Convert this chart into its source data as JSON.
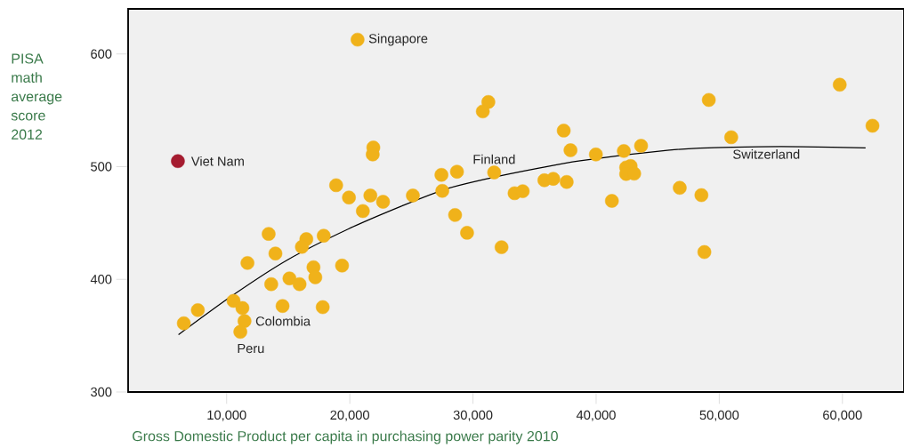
{
  "chart_data": {
    "type": "scatter",
    "xlabel": "Gross Domestic Product per capita in purchasing power parity 2010",
    "ylabel": "PISA math average score 2012",
    "xlim": [
      2000,
      65000
    ],
    "ylim": [
      300,
      640
    ],
    "xticks": [
      {
        "value": 10000,
        "label": "10,000"
      },
      {
        "value": 20000,
        "label": "20,000"
      },
      {
        "value": 30000,
        "label": "30,000"
      },
      {
        "value": 40000,
        "label": "40,000"
      },
      {
        "value": 50000,
        "label": "50,000"
      },
      {
        "value": 60000,
        "label": "60,000"
      }
    ],
    "yticks": [
      300,
      400,
      500,
      600
    ],
    "series": [
      {
        "marker": "circle",
        "x": [
          20630,
          6040,
          21910,
          21860,
          18890,
          19930,
          21670,
          21060,
          13410,
          16470,
          17880,
          16110,
          13960,
          11690,
          19370,
          17050,
          17200,
          15100,
          15920,
          13620,
          10560,
          11280,
          14540,
          17800,
          7660,
          6520,
          11450,
          11110,
          31250,
          30800,
          37370,
          37920,
          39980,
          42250,
          43650,
          31720,
          28700,
          27440,
          27510,
          25120,
          22700,
          28550,
          29520,
          32320,
          33380,
          34040,
          35800,
          36520,
          37610,
          41280,
          42440,
          42800,
          42440,
          43090,
          59780,
          49150,
          62440,
          50970,
          46790,
          48550,
          48790
        ],
        "values": [
          612.7,
          504.9,
          517,
          510.8,
          483.5,
          472.6,
          474.4,
          460.6,
          440.3,
          435.7,
          438.7,
          428.8,
          422.9,
          414.5,
          412.2,
          410.7,
          401.8,
          400.8,
          395.7,
          395.7,
          380.9,
          374.5,
          376.3,
          375.3,
          372.7,
          361,
          363,
          353.4,
          557.4,
          549,
          532,
          514.6,
          510.8,
          513.9,
          518.5,
          494.8,
          495.5,
          492.7,
          478.5,
          474.4,
          468.8,
          457.1,
          441.3,
          428.5,
          476.4,
          478.2,
          487.9,
          489.2,
          486.4,
          469.6,
          499.3,
          500.6,
          493.5,
          493.8,
          572.7,
          559.2,
          536.3,
          526.1,
          481.2,
          474.7,
          424.2
        ],
        "colors": [
          "#f0b21a",
          "#a51c30",
          "#f0b21a",
          "#f0b21a",
          "#f0b21a",
          "#f0b21a",
          "#f0b21a",
          "#f0b21a",
          "#f0b21a",
          "#f0b21a",
          "#f0b21a",
          "#f0b21a",
          "#f0b21a",
          "#f0b21a",
          "#f0b21a",
          "#f0b21a",
          "#f0b21a",
          "#f0b21a",
          "#f0b21a",
          "#f0b21a",
          "#f0b21a",
          "#f0b21a",
          "#f0b21a",
          "#f0b21a",
          "#f0b21a",
          "#f0b21a",
          "#f0b21a",
          "#f0b21a",
          "#f0b21a",
          "#f0b21a",
          "#f0b21a",
          "#f0b21a",
          "#f0b21a",
          "#f0b21a",
          "#f0b21a",
          "#f0b21a",
          "#f0b21a",
          "#f0b21a",
          "#f0b21a",
          "#f0b21a",
          "#f0b21a",
          "#f0b21a",
          "#f0b21a",
          "#f0b21a",
          "#f0b21a",
          "#f0b21a",
          "#f0b21a",
          "#f0b21a",
          "#f0b21a",
          "#f0b21a",
          "#f0b21a",
          "#f0b21a",
          "#f0b21a",
          "#f0b21a",
          "#f0b21a",
          "#f0b21a",
          "#f0b21a",
          "#f0b21a",
          "#f0b21a",
          "#f0b21a",
          "#f0b21a"
        ]
      },
      {
        "type": "line",
        "marker": "none",
        "color": "#000000",
        "x": [
          6090,
          10670,
          15020,
          19860,
          24200,
          27830,
          31450,
          35070,
          38700,
          45940,
          49570,
          53190,
          56810,
          61880
        ],
        "values": [
          350.9,
          387.2,
          417.8,
          444.6,
          465,
          480.2,
          490,
          498.1,
          505.2,
          514.6,
          516.9,
          517.7,
          517.7,
          516.7
        ]
      }
    ],
    "annotations": [
      {
        "text": "Singapore",
        "x": 20630,
        "y": 612.7
      },
      {
        "text": "Viet Nam",
        "x": 6040,
        "y": 504.9
      },
      {
        "text": "Finland",
        "x": 31720,
        "y": 494.8
      },
      {
        "text": "Switzerland",
        "x": 50970,
        "y": 526.1
      },
      {
        "text": "Colombia",
        "x": 11450,
        "y": 363
      },
      {
        "text": "Peru",
        "x": 11110,
        "y": 353.4
      }
    ]
  }
}
